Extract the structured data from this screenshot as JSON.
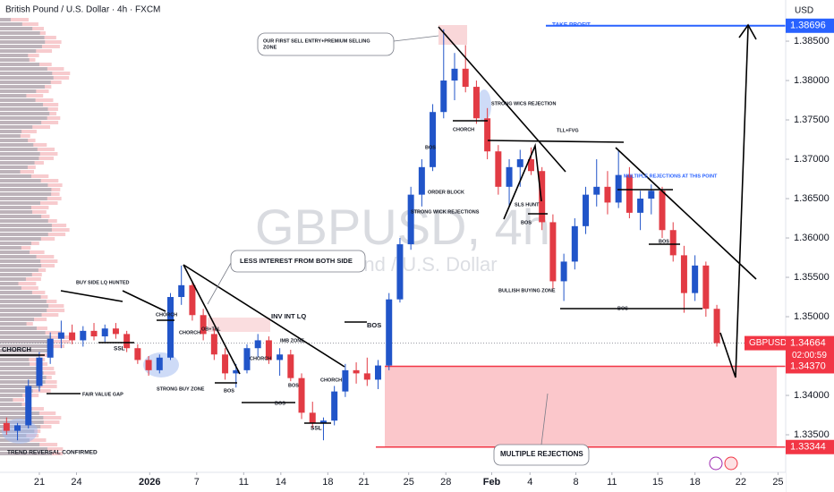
{
  "chart_data": {
    "type": "candlestick",
    "title": "British Pound / U.S. Dollar · 4h · FXCM",
    "watermark": {
      "symbol": "GBPUSD, 4h",
      "name": "British Pound / U.S. Dollar"
    },
    "y_axis_label": "USD",
    "grid": false,
    "up_color": "#2155c9",
    "down_color": "#e23b44",
    "ylim": [
      1.33023,
      1.39023
    ],
    "yticks": [
      {
        "value": 1.385,
        "label": "1.38500"
      },
      {
        "value": 1.38,
        "label": "1.38000"
      },
      {
        "value": 1.375,
        "label": "1.37500"
      },
      {
        "value": 1.37,
        "label": "1.37000"
      },
      {
        "value": 1.365,
        "label": "1.36500"
      },
      {
        "value": 1.36,
        "label": "1.36000"
      },
      {
        "value": 1.355,
        "label": "1.35500"
      },
      {
        "value": 1.35,
        "label": "1.35000"
      },
      {
        "value": 1.345,
        "label": "1.34500"
      },
      {
        "value": 1.34,
        "label": "1.34000"
      },
      {
        "value": 1.335,
        "label": "1.33500"
      }
    ],
    "xlim": [
      -0.6,
      71.3
    ],
    "xticks": [
      {
        "value": 3.0,
        "label": "21"
      },
      {
        "value": 6.4,
        "label": "24"
      },
      {
        "value": 13.1,
        "label": "2026"
      },
      {
        "value": 17.4,
        "label": "7"
      },
      {
        "value": 21.7,
        "label": "11"
      },
      {
        "value": 25.1,
        "label": "14"
      },
      {
        "value": 29.4,
        "label": "18"
      },
      {
        "value": 32.7,
        "label": "21"
      },
      {
        "value": 36.8,
        "label": "25"
      },
      {
        "value": 40.2,
        "label": "28"
      },
      {
        "value": 44.4,
        "label": "Feb"
      },
      {
        "value": 47.9,
        "label": "4"
      },
      {
        "value": 52.1,
        "label": "8"
      },
      {
        "value": 55.4,
        "label": "11"
      },
      {
        "value": 59.6,
        "label": "15"
      },
      {
        "value": 63.0,
        "label": "18"
      },
      {
        "value": 67.2,
        "label": "22"
      },
      {
        "value": 70.6,
        "label": "25"
      }
    ],
    "x": [
      0,
      1,
      2,
      3,
      4,
      5,
      6,
      7,
      8,
      9,
      10,
      11,
      12,
      13,
      14,
      15,
      16,
      17,
      18,
      19,
      20,
      21,
      22,
      23,
      24,
      25,
      26,
      27,
      28,
      29,
      30,
      31,
      32,
      33,
      34,
      35,
      36,
      37,
      38,
      39,
      40,
      41,
      42,
      43,
      44,
      45,
      46,
      47,
      48,
      49,
      50,
      51,
      52,
      53,
      54,
      55,
      56,
      57,
      58,
      59,
      60,
      61,
      62,
      63,
      64,
      65
    ],
    "open": [
      1.3365,
      1.3355,
      1.3362,
      1.3412,
      1.3448,
      1.3472,
      1.348,
      1.347,
      1.3482,
      1.3475,
      1.3485,
      1.3478,
      1.346,
      1.3445,
      1.3432,
      1.3448,
      1.3525,
      1.354,
      1.3502,
      1.3478,
      1.3452,
      1.3428,
      1.3432,
      1.346,
      1.347,
      1.3445,
      1.3452,
      1.3422,
      1.3378,
      1.3365,
      1.3368,
      1.3405,
      1.3432,
      1.3428,
      1.342,
      1.3438,
      1.3522,
      1.3592,
      1.3655,
      1.369,
      1.376,
      1.38,
      1.3815,
      1.3792,
      1.3752,
      1.371,
      1.3665,
      1.369,
      1.37,
      1.3685,
      1.362,
      1.3545,
      1.357,
      1.3615,
      1.3655,
      1.3665,
      1.3645,
      1.368,
      1.3632,
      1.365,
      1.366,
      1.361,
      1.3578,
      1.353,
      1.3565,
      1.351
    ],
    "high": [
      1.3372,
      1.3365,
      1.342,
      1.3455,
      1.348,
      1.3495,
      1.349,
      1.3488,
      1.3492,
      1.349,
      1.3492,
      1.3482,
      1.3465,
      1.345,
      1.3452,
      1.353,
      1.3565,
      1.3545,
      1.351,
      1.3485,
      1.346,
      1.344,
      1.3465,
      1.3478,
      1.3475,
      1.346,
      1.3458,
      1.3428,
      1.3392,
      1.3372,
      1.3412,
      1.344,
      1.3442,
      1.3448,
      1.3445,
      1.353,
      1.36,
      1.3665,
      1.37,
      1.377,
      1.3865,
      1.3835,
      1.3845,
      1.38,
      1.3765,
      1.3718,
      1.37,
      1.3712,
      1.3715,
      1.369,
      1.363,
      1.358,
      1.3625,
      1.3665,
      1.37,
      1.3685,
      1.3712,
      1.369,
      1.366,
      1.3668,
      1.3665,
      1.362,
      1.359,
      1.3578,
      1.357,
      1.3515
    ],
    "low": [
      1.335,
      1.3343,
      1.3358,
      1.3405,
      1.344,
      1.346,
      1.3465,
      1.3462,
      1.347,
      1.3468,
      1.3472,
      1.3455,
      1.344,
      1.3425,
      1.3428,
      1.3445,
      1.3515,
      1.3495,
      1.347,
      1.3445,
      1.342,
      1.341,
      1.3428,
      1.3448,
      1.344,
      1.3425,
      1.3418,
      1.337,
      1.3358,
      1.3343,
      1.3362,
      1.3398,
      1.3415,
      1.3412,
      1.3408,
      1.3432,
      1.3518,
      1.3585,
      1.364,
      1.3685,
      1.3752,
      1.3775,
      1.3785,
      1.3745,
      1.37,
      1.3655,
      1.364,
      1.3665,
      1.368,
      1.361,
      1.3535,
      1.352,
      1.356,
      1.3605,
      1.364,
      1.363,
      1.3638,
      1.3625,
      1.361,
      1.363,
      1.36,
      1.357,
      1.3505,
      1.352,
      1.35,
      1.3462
    ],
    "close": [
      1.3355,
      1.3362,
      1.3412,
      1.3448,
      1.3472,
      1.348,
      1.347,
      1.3482,
      1.3475,
      1.3485,
      1.3478,
      1.346,
      1.3445,
      1.3432,
      1.3448,
      1.3525,
      1.354,
      1.3502,
      1.3478,
      1.3452,
      1.3428,
      1.3432,
      1.346,
      1.347,
      1.3445,
      1.3452,
      1.3422,
      1.3378,
      1.3365,
      1.3368,
      1.3405,
      1.3432,
      1.3428,
      1.342,
      1.3438,
      1.3522,
      1.3592,
      1.3655,
      1.369,
      1.376,
      1.38,
      1.3815,
      1.3792,
      1.3752,
      1.371,
      1.3665,
      1.369,
      1.37,
      1.3685,
      1.362,
      1.3545,
      1.357,
      1.3615,
      1.3655,
      1.3665,
      1.3645,
      1.368,
      1.3632,
      1.365,
      1.366,
      1.361,
      1.3578,
      1.353,
      1.3565,
      1.351,
      1.34664
    ],
    "take_profit": {
      "label": "TAKE PROFIT",
      "value": 1.38696,
      "color": "#2962ff"
    },
    "zone": {
      "top": 1.3437,
      "top_label": "1.34370",
      "bottom": 1.33344,
      "color": "#f23645"
    },
    "last_price": {
      "symbol": "GBPUSD",
      "value": 1.34664,
      "countdown": "02:00:59",
      "color": "#f23645"
    },
    "annotations": [
      "OUR FIRST SELL ENTRY+PREMIUM SELLING",
      "ZONE",
      "STRONG WICS REJECTION",
      "CHORCH",
      "TLL+FVG",
      "BOS",
      "MULTIPLE REJECTIONS AT THIS POINT",
      "ORDER BLOCK",
      "SLS HUNT",
      "STRONG WICK REJECTIONS",
      "BOS",
      "BOS",
      "LESS INTEREST FROM BOTH SIDE",
      "BUY SIDE LQ HUNTED",
      "BULLISH BUYING ZONE",
      "CHORCH",
      "INV INT LQ",
      "BOS",
      "OB+TLL",
      "BOS",
      "CHORCH",
      "IMB ZONE",
      "SSL",
      "CHORCH",
      "CHORCH",
      "CHORCH",
      "BOS",
      "STRONG BUY ZONE",
      "BOS",
      "FAIR VALUE GAP",
      "BOS",
      "SSL",
      "TREND REVERSAL CONFIRMED",
      "MULTIPLE REJECTIONS"
    ]
  }
}
